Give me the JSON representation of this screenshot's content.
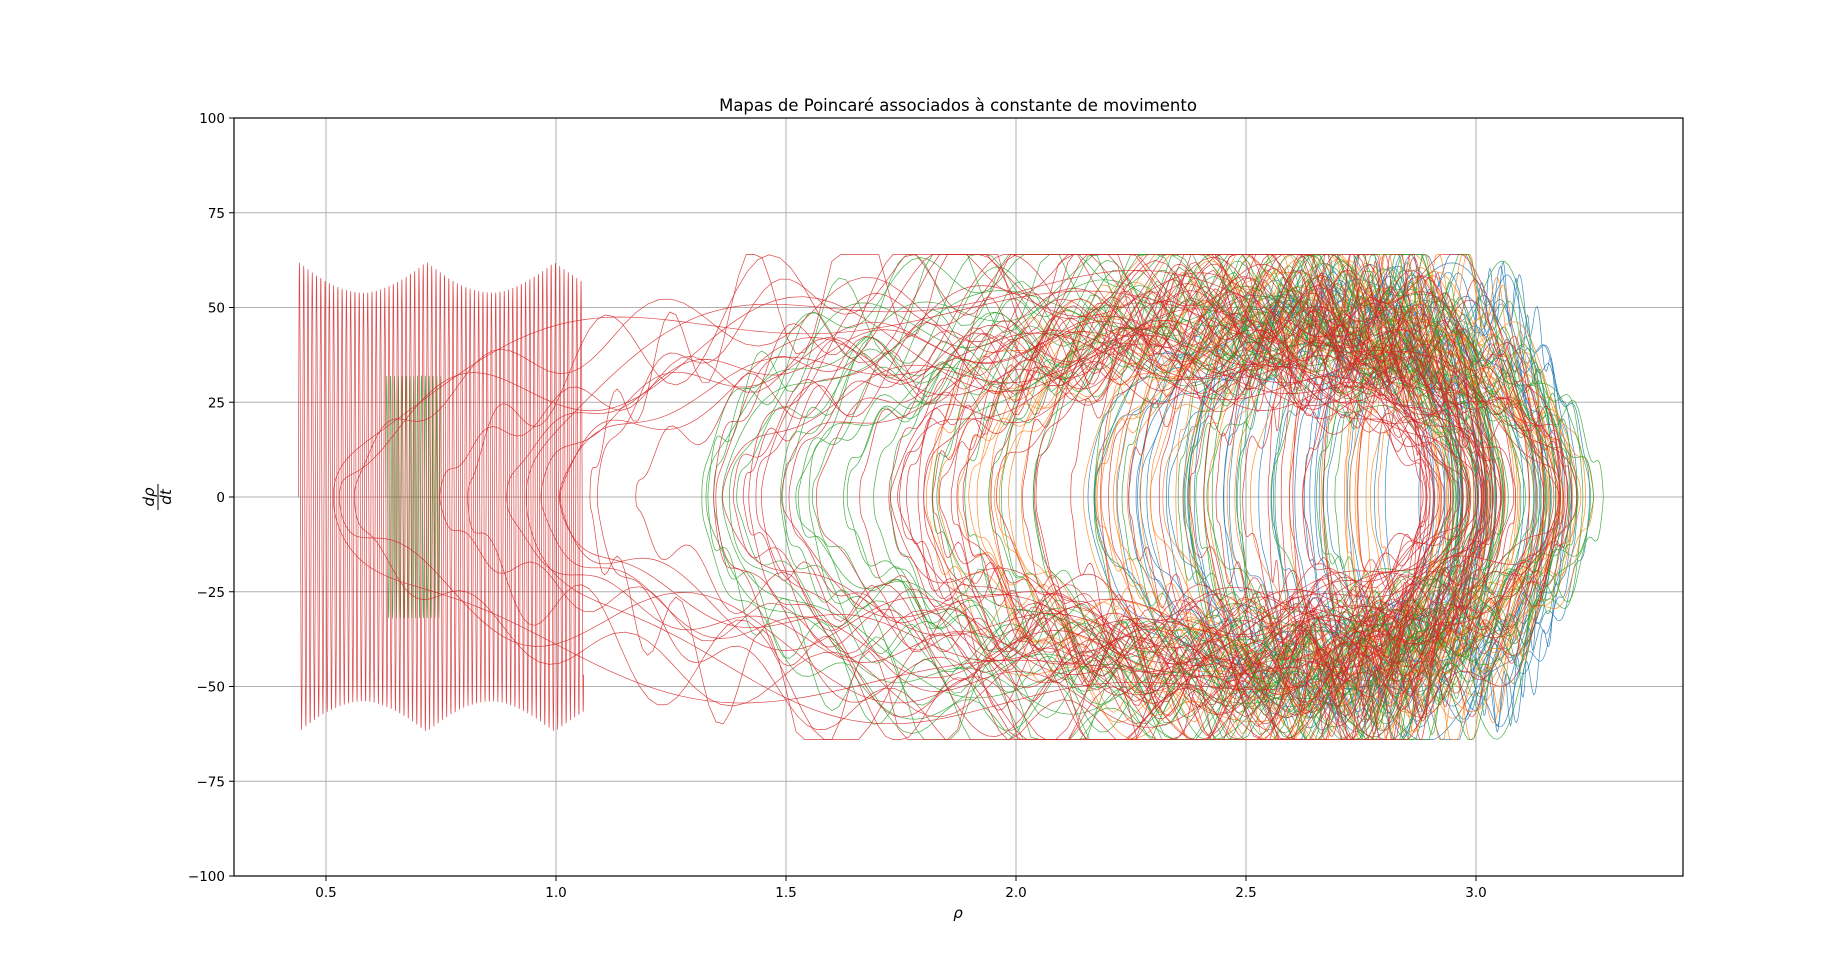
{
  "chart_data": {
    "type": "line",
    "title": "Mapas de Poincaré associados à constante de movimento",
    "xlabel": "ρ",
    "ylabel_numerator": "dρ",
    "ylabel_denominator": "dt",
    "xlim": [
      0.3,
      3.45
    ],
    "ylim": [
      -100,
      100
    ],
    "xticks": [
      0.5,
      1.0,
      1.5,
      2.0,
      2.5,
      3.0
    ],
    "xtick_labels": [
      "0.5",
      "1.0",
      "1.5",
      "2.0",
      "2.5",
      "3.0"
    ],
    "yticks": [
      100,
      75,
      50,
      25,
      0,
      -25,
      -50,
      -75,
      -100
    ],
    "ytick_labels": [
      "100",
      "75",
      "50",
      "25",
      "0",
      "−25",
      "−50",
      "−75",
      "−100"
    ],
    "grid": true,
    "colors": {
      "blue": "#1f77b4",
      "orange": "#ff7f0e",
      "green": "#2ca02c",
      "red": "#d62728"
    },
    "series": [
      {
        "color_key": "blue",
        "x_min": 2.15,
        "x_max": 3.25,
        "amplitude": 62,
        "loops": 38,
        "wobble": 0.1
      },
      {
        "color_key": "orange",
        "x_min": 1.72,
        "x_max": 3.26,
        "amplitude": 63,
        "loops": 40,
        "wobble": 0.14
      },
      {
        "color_key": "green",
        "x_min": 1.3,
        "x_max": 3.28,
        "amplitude": 64,
        "loops": 42,
        "wobble": 0.18
      },
      {
        "color_key": "red",
        "x_min": 0.44,
        "x_max": 3.22,
        "amplitude": 64,
        "loops": 60,
        "wobble": 0.22
      }
    ]
  }
}
